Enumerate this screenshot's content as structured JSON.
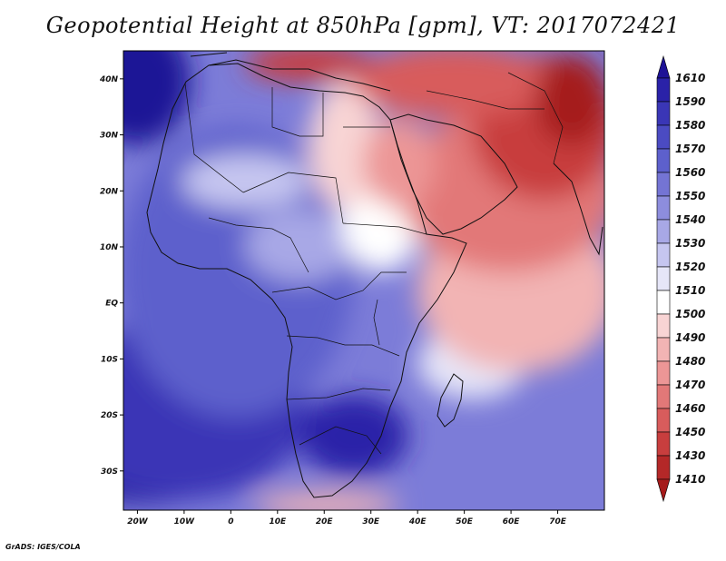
{
  "title": "Geopotential Height at 850hPa [gpm], VT: 2017072421",
  "credit": "GrADS: IGES/COLA",
  "map": {
    "lon_range": [
      -23,
      80
    ],
    "lat_range": [
      -37,
      45
    ],
    "lon_ticks": [
      "20W",
      "10W",
      "0",
      "10E",
      "20E",
      "30E",
      "40E",
      "50E",
      "60E",
      "70E"
    ],
    "lat_ticks": [
      "40N",
      "30N",
      "20N",
      "10N",
      "EQ",
      "10S",
      "20S",
      "30S"
    ]
  },
  "colorbar": {
    "levels": [
      "1610",
      "1590",
      "1580",
      "1570",
      "1560",
      "1550",
      "1540",
      "1530",
      "1520",
      "1510",
      "1500",
      "1490",
      "1480",
      "1470",
      "1460",
      "1450",
      "1430",
      "1410"
    ],
    "colors": [
      "#1e1296",
      "#2a22a8",
      "#3a36b6",
      "#4b4bc2",
      "#5d60cc",
      "#7474d4",
      "#8d8ddd",
      "#a8a8e6",
      "#c6c6f0",
      "#e6e6f8",
      "#ffffff",
      "#f8d4d4",
      "#f2b4b4",
      "#ec9696",
      "#e27878",
      "#d85c5c",
      "#c83e3e",
      "#b42828",
      "#a51a1a"
    ]
  }
}
